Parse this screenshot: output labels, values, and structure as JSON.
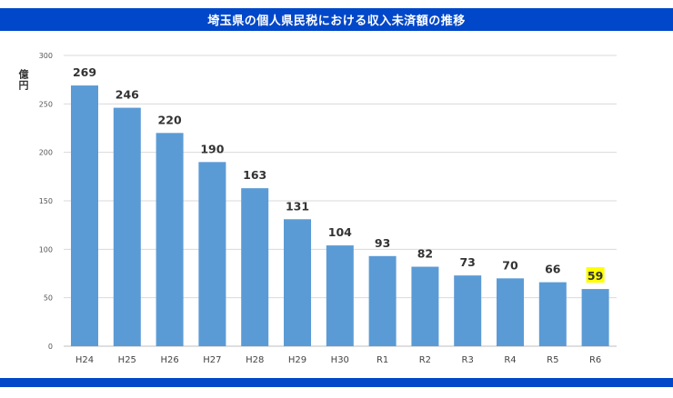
{
  "header": {
    "title": "埼玉県の個人県民税における収入未済額の推移"
  },
  "chart_data": {
    "type": "bar",
    "title": "埼玉県の個人県民税における収入未済額の推移",
    "ylabel": "億円",
    "xlabel": "",
    "ylim": [
      0,
      300
    ],
    "yticks": [
      0,
      50,
      100,
      150,
      200,
      250,
      300
    ],
    "grid": true,
    "categories": [
      "H24",
      "H25",
      "H26",
      "H27",
      "H28",
      "H29",
      "H30",
      "R1",
      "R2",
      "R3",
      "R4",
      "R5",
      "R6"
    ],
    "values": [
      269,
      246,
      220,
      190,
      163,
      131,
      104,
      93,
      82,
      73,
      70,
      66,
      59
    ],
    "highlight_index": 12,
    "colors": {
      "bar": "#5b9bd5",
      "highlight": "#ffff00",
      "grid": "#d9d9d9",
      "header": "#0047c9"
    }
  }
}
